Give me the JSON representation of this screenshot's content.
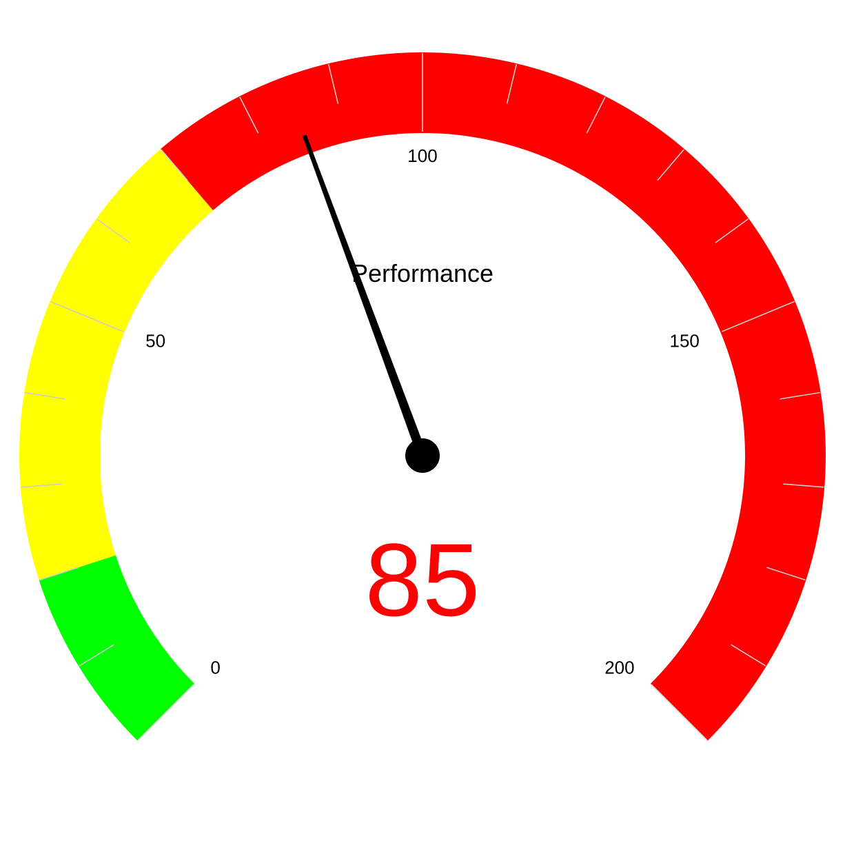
{
  "chart_data": {
    "type": "gauge",
    "title": "Performance",
    "value": 85,
    "value_text": "85",
    "min": 0,
    "max": 200,
    "sweep_degrees": 270,
    "major_ticks": [
      0,
      50,
      100,
      150,
      200
    ],
    "major_tick_labels": [
      "0",
      "50",
      "100",
      "150",
      "200"
    ],
    "minor_tick_step": 10,
    "bands": [
      {
        "from": 0,
        "to": 20,
        "color": "#00FF00"
      },
      {
        "from": 20,
        "to": 70,
        "color": "#FFFF00"
      },
      {
        "from": 70,
        "to": 200,
        "color": "#FF0000"
      }
    ],
    "value_color": "#FF0000",
    "needle_color": "#000000",
    "tick_color": "#CCCCCC"
  }
}
